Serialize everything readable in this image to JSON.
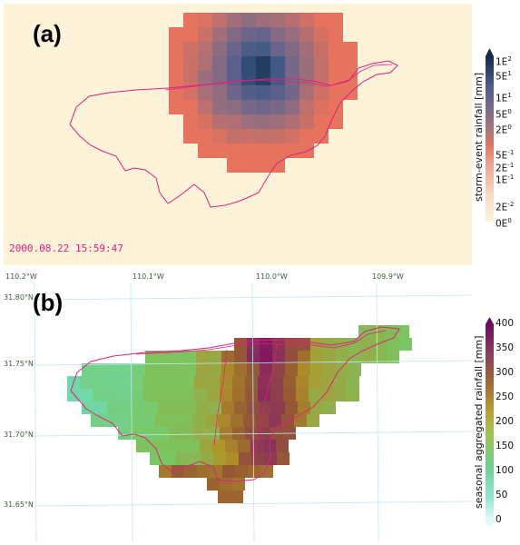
{
  "panel_a": {
    "label": "(a)",
    "timestamp": "2000.08.22 15:59:47",
    "colorbar_title": "storm-event rainfall  [mm]",
    "colorbar_ticks": [
      {
        "base": "1E",
        "exp": "2"
      },
      {
        "base": "5E",
        "exp": "1"
      },
      {
        "base": "1E",
        "exp": "1"
      },
      {
        "base": "5E",
        "exp": "0"
      },
      {
        "base": "2E",
        "exp": "0"
      },
      {
        "base": "5E",
        "exp": "-1"
      },
      {
        "base": "2E",
        "exp": "-1"
      },
      {
        "base": "1E",
        "exp": "-1"
      },
      {
        "base": "2E",
        "exp": "-2"
      },
      {
        "base": "0E",
        "exp": "0"
      }
    ],
    "colors": {
      "background": "#fcf3d9",
      "boundary": "#e0207f"
    }
  },
  "panel_b": {
    "label": "(b)",
    "colorbar_title": "seasonal aggregated rainfall  [mm]",
    "colorbar_ticks": [
      "400",
      "350",
      "300",
      "250",
      "200",
      "150",
      "100",
      "50",
      "0"
    ],
    "lon_labels": [
      "110.2°W",
      "110.1°W",
      "110.0°W",
      "109.9°W"
    ],
    "lat_labels": [
      "31.80°N",
      "31.75°N",
      "31.70°N",
      "31.65°N"
    ],
    "colors": {
      "grid": "#bfe8ee",
      "boundary": "#e0207f"
    }
  }
}
